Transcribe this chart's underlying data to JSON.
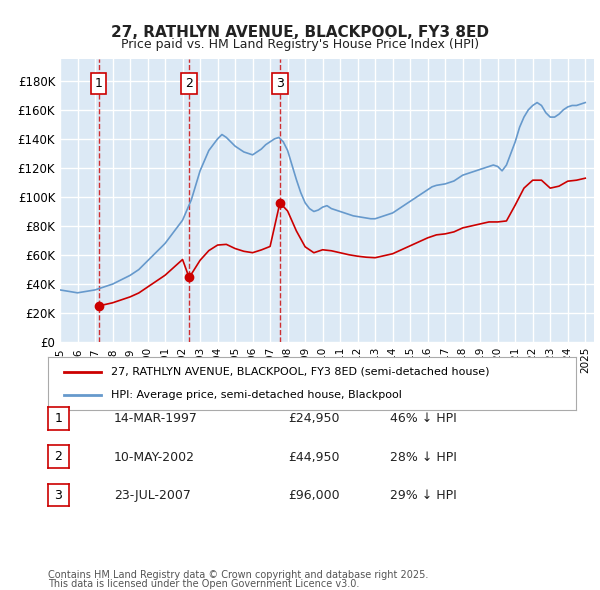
{
  "title1": "27, RATHLYN AVENUE, BLACKPOOL, FY3 8ED",
  "title2": "Price paid vs. HM Land Registry's House Price Index (HPI)",
  "ylabel_ticks": [
    "£0",
    "£20K",
    "£40K",
    "£60K",
    "£80K",
    "£100K",
    "£120K",
    "£140K",
    "£160K",
    "£180K"
  ],
  "ytick_vals": [
    0,
    20000,
    40000,
    60000,
    80000,
    100000,
    120000,
    140000,
    160000,
    180000
  ],
  "ylim": [
    0,
    195000
  ],
  "xlim_start": 1995.0,
  "xlim_end": 2025.5,
  "background_color": "#dce9f5",
  "plot_bg": "#dce9f5",
  "grid_color": "#ffffff",
  "transactions": [
    {
      "label": "1",
      "date": "14-MAR-1997",
      "price": 24950,
      "year": 1997.2,
      "hpi_pct": "46% ↓ HPI"
    },
    {
      "label": "2",
      "date": "10-MAY-2002",
      "price": 44950,
      "year": 2002.36,
      "hpi_pct": "28% ↓ HPI"
    },
    {
      "label": "3",
      "date": "23-JUL-2007",
      "price": 96000,
      "year": 2007.56,
      "hpi_pct": "29% ↓ HPI"
    }
  ],
  "legend1": "27, RATHLYN AVENUE, BLACKPOOL, FY3 8ED (semi-detached house)",
  "legend2": "HPI: Average price, semi-detached house, Blackpool",
  "red_color": "#cc0000",
  "blue_color": "#6699cc",
  "marker_box_color": "#cc0000",
  "footer1": "Contains HM Land Registry data © Crown copyright and database right 2025.",
  "footer2": "This data is licensed under the Open Government Licence v3.0.",
  "hpi_data_x": [
    1995.0,
    1995.25,
    1995.5,
    1995.75,
    1996.0,
    1996.25,
    1996.5,
    1996.75,
    1997.0,
    1997.25,
    1997.5,
    1997.75,
    1998.0,
    1998.25,
    1998.5,
    1998.75,
    1999.0,
    1999.25,
    1999.5,
    1999.75,
    2000.0,
    2000.25,
    2000.5,
    2000.75,
    2001.0,
    2001.25,
    2001.5,
    2001.75,
    2002.0,
    2002.25,
    2002.5,
    2002.75,
    2003.0,
    2003.25,
    2003.5,
    2003.75,
    2004.0,
    2004.25,
    2004.5,
    2004.75,
    2005.0,
    2005.25,
    2005.5,
    2005.75,
    2006.0,
    2006.25,
    2006.5,
    2006.75,
    2007.0,
    2007.25,
    2007.5,
    2007.75,
    2008.0,
    2008.25,
    2008.5,
    2008.75,
    2009.0,
    2009.25,
    2009.5,
    2009.75,
    2010.0,
    2010.25,
    2010.5,
    2010.75,
    2011.0,
    2011.25,
    2011.5,
    2011.75,
    2012.0,
    2012.25,
    2012.5,
    2012.75,
    2013.0,
    2013.25,
    2013.5,
    2013.75,
    2014.0,
    2014.25,
    2014.5,
    2014.75,
    2015.0,
    2015.25,
    2015.5,
    2015.75,
    2016.0,
    2016.25,
    2016.5,
    2016.75,
    2017.0,
    2017.25,
    2017.5,
    2017.75,
    2018.0,
    2018.25,
    2018.5,
    2018.75,
    2019.0,
    2019.25,
    2019.5,
    2019.75,
    2020.0,
    2020.25,
    2020.5,
    2020.75,
    2021.0,
    2021.25,
    2021.5,
    2021.75,
    2022.0,
    2022.25,
    2022.5,
    2022.75,
    2023.0,
    2023.25,
    2023.5,
    2023.75,
    2024.0,
    2024.25,
    2024.5,
    2024.75,
    2025.0
  ],
  "hpi_data_y": [
    36000,
    35500,
    35000,
    34500,
    34000,
    34500,
    35000,
    35500,
    36000,
    37000,
    38000,
    39000,
    40000,
    41500,
    43000,
    44500,
    46000,
    48000,
    50000,
    53000,
    56000,
    59000,
    62000,
    65000,
    68000,
    72000,
    76000,
    80000,
    84000,
    91000,
    98000,
    108000,
    118000,
    125000,
    132000,
    136000,
    140000,
    143000,
    141000,
    138000,
    135000,
    133000,
    131000,
    130000,
    129000,
    131000,
    133000,
    136000,
    138000,
    140000,
    141000,
    138000,
    132000,
    122000,
    112000,
    103000,
    96000,
    92000,
    90000,
    91000,
    93000,
    94000,
    92000,
    91000,
    90000,
    89000,
    88000,
    87000,
    86500,
    86000,
    85500,
    85000,
    85000,
    86000,
    87000,
    88000,
    89000,
    91000,
    93000,
    95000,
    97000,
    99000,
    101000,
    103000,
    105000,
    107000,
    108000,
    108500,
    109000,
    110000,
    111000,
    113000,
    115000,
    116000,
    117000,
    118000,
    119000,
    120000,
    121000,
    122000,
    121000,
    118000,
    122000,
    130000,
    138000,
    148000,
    155000,
    160000,
    163000,
    165000,
    163000,
    158000,
    155000,
    155000,
    157000,
    160000,
    162000,
    163000,
    163000,
    164000,
    165000
  ],
  "price_data_x": [
    1995.0,
    1997.2,
    1999.5,
    2000.0,
    2000.5,
    2001.0,
    2001.5,
    2002.36,
    2003.0,
    2003.5,
    2004.0,
    2004.5,
    2005.0,
    2005.5,
    2006.0,
    2006.5,
    2007.0,
    2007.56,
    2008.0,
    2008.5,
    2009.0,
    2009.5,
    2010.0,
    2010.5,
    2011.0,
    2011.5,
    2012.0,
    2012.5,
    2013.0,
    2013.5,
    2014.0,
    2014.5,
    2015.0,
    2015.5,
    2016.0,
    2016.5,
    2017.0,
    2017.5,
    2018.0,
    2018.5,
    2019.0,
    2019.5,
    2020.0,
    2020.5,
    2021.0,
    2021.5,
    2022.0,
    2022.5,
    2023.0,
    2023.5,
    2024.0,
    2024.5,
    2025.0
  ],
  "price_data_y": [
    null,
    24950,
    null,
    null,
    null,
    null,
    null,
    44950,
    null,
    null,
    null,
    null,
    null,
    null,
    null,
    null,
    null,
    96000,
    null,
    null,
    null,
    null,
    null,
    null,
    null,
    null,
    null,
    null,
    null,
    null,
    null,
    null,
    null,
    null,
    null,
    null,
    null,
    null,
    null,
    null,
    null,
    null,
    null,
    null,
    null,
    null,
    null,
    null,
    null,
    null,
    null,
    null,
    null
  ]
}
